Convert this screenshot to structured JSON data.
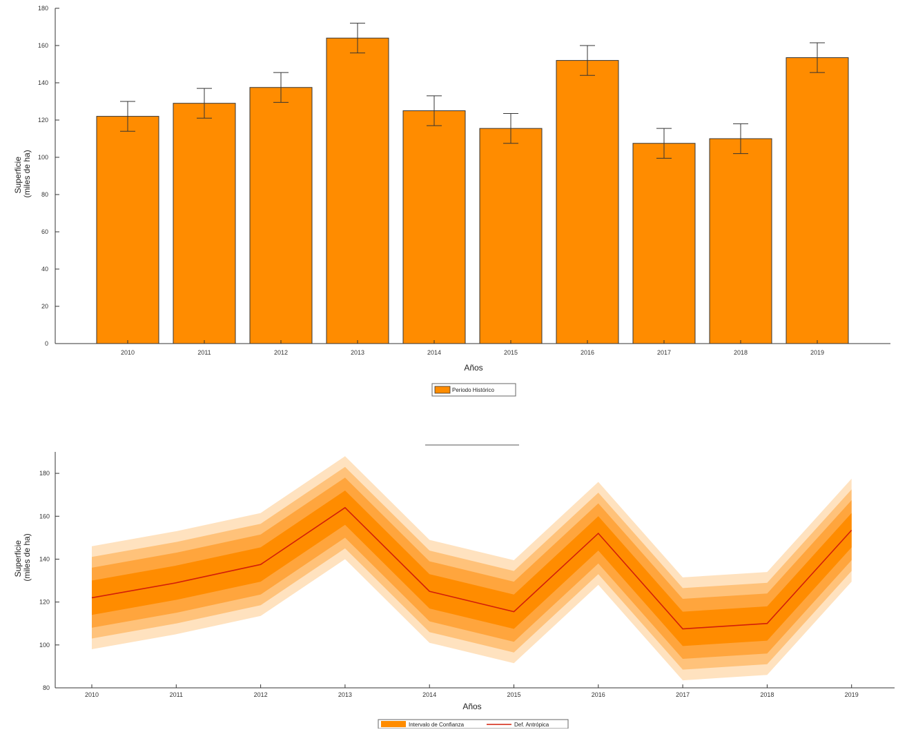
{
  "colors": {
    "bar": "#ff8c00",
    "bar_edge": "#333333",
    "error_bar": "#333333",
    "band_inner": "#ff8c00",
    "band_mid": "#ffa53d",
    "band_outer": "#ffc27a",
    "band_outermost": "#ffe2bf",
    "line": "#d21e0a",
    "axis": "#333333"
  },
  "chart_data": [
    {
      "type": "bar",
      "categories": [
        "2010",
        "2011",
        "2012",
        "2013",
        "2014",
        "2015",
        "2016",
        "2017",
        "2018",
        "2019"
      ],
      "values": [
        122,
        129,
        137.5,
        164,
        125,
        115.5,
        152,
        107.5,
        110,
        153.5
      ],
      "error": [
        8,
        8,
        8,
        8,
        8,
        8,
        8,
        8,
        8,
        8
      ],
      "xlabel": "Años",
      "ylabel": [
        "Superficie",
        "(miles de ha)"
      ],
      "ylim": [
        0,
        180
      ],
      "yticks": [
        0,
        20,
        40,
        60,
        80,
        100,
        120,
        140,
        160,
        180
      ],
      "grid": false,
      "legend": {
        "position": "bottom-center",
        "entries": [
          "Periodo Histórico"
        ]
      }
    },
    {
      "type": "area",
      "x": [
        "2010",
        "2011",
        "2012",
        "2013",
        "2014",
        "2015",
        "2016",
        "2017",
        "2018",
        "2019"
      ],
      "series": [
        {
          "name": "Def. Antrópica",
          "values": [
            122,
            129,
            137.5,
            164,
            125,
            115.5,
            152,
            107.5,
            110,
            153.5
          ]
        }
      ],
      "band_half_widths": [
        8,
        14,
        19,
        24
      ],
      "xlabel": "Años",
      "ylabel": [
        "Superficie",
        "(miles de ha)"
      ],
      "ylim": [
        80,
        190
      ],
      "yticks": [
        80,
        100,
        120,
        140,
        160,
        180
      ],
      "grid": false,
      "legend": {
        "position": "bottom-center",
        "entries": [
          "Intervalo de Confianza",
          "Def. Antrópica"
        ]
      }
    }
  ]
}
